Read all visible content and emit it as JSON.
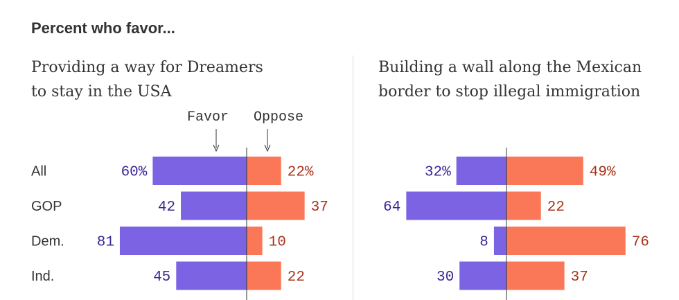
{
  "header": "Percent who favor...",
  "colors": {
    "favor": "#7b63e3",
    "oppose": "#fa7857",
    "favor_text": "#3d2496",
    "oppose_text": "#a8321b",
    "axis": "#333333"
  },
  "legend": {
    "favor": "Favor",
    "oppose": "Oppose"
  },
  "chart_data": [
    {
      "type": "bar",
      "orientation": "diverging-horizontal",
      "title_lines": [
        "Providing a way for Dreamers",
        "to stay in the USA"
      ],
      "categories": [
        "All",
        "GOP",
        "Dem.",
        "Ind."
      ],
      "series": [
        {
          "name": "Favor",
          "values": [
            60,
            42,
            81,
            45
          ]
        },
        {
          "name": "Oppose",
          "values": [
            22,
            37,
            10,
            22
          ]
        }
      ],
      "labels": {
        "Favor": [
          "60%",
          "42",
          "81",
          "45"
        ],
        "Oppose": [
          "22%",
          "37",
          "10",
          "22"
        ]
      }
    },
    {
      "type": "bar",
      "orientation": "diverging-horizontal",
      "title_lines": [
        "Building a wall along the Mexican",
        "border to stop illegal immigration"
      ],
      "categories": [
        "All",
        "GOP",
        "Dem.",
        "Ind."
      ],
      "series": [
        {
          "name": "Favor",
          "values": [
            32,
            64,
            8,
            30
          ]
        },
        {
          "name": "Oppose",
          "values": [
            49,
            22,
            76,
            37
          ]
        }
      ],
      "labels": {
        "Favor": [
          "32%",
          "64",
          "8",
          "30"
        ],
        "Oppose": [
          "49%",
          "22",
          "76",
          "37"
        ]
      }
    }
  ]
}
